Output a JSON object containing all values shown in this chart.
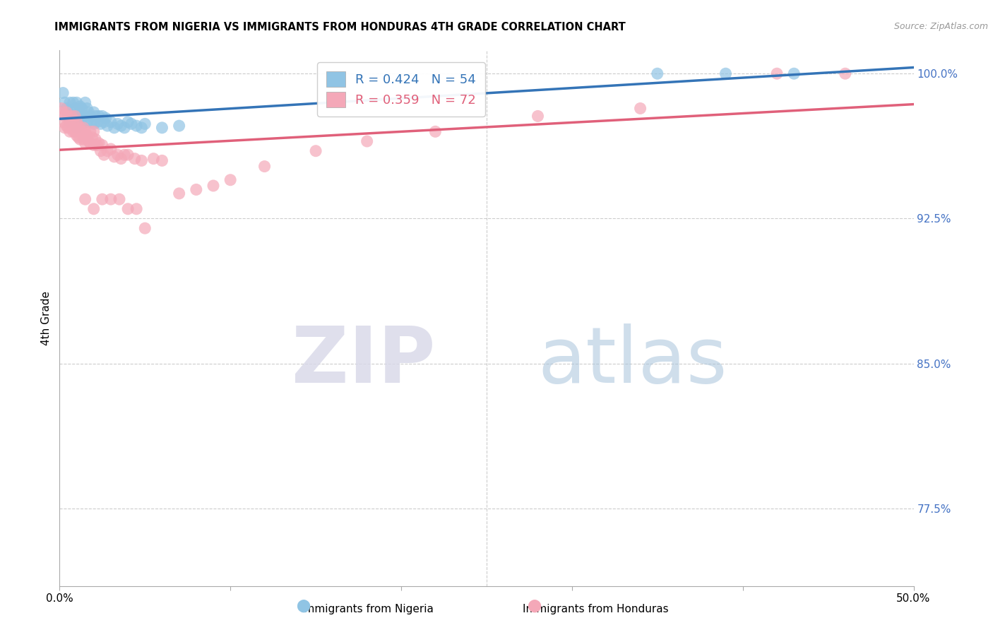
{
  "title": "IMMIGRANTS FROM NIGERIA VS IMMIGRANTS FROM HONDURAS 4TH GRADE CORRELATION CHART",
  "source": "Source: ZipAtlas.com",
  "ylabel": "4th Grade",
  "y_ticks_pct": [
    77.5,
    85.0,
    92.5,
    100.0
  ],
  "y_tick_labels": [
    "77.5%",
    "85.0%",
    "92.5%",
    "100.0%"
  ],
  "xmin": 0.0,
  "xmax": 0.5,
  "ymin": 0.735,
  "ymax": 1.012,
  "nigeria_color": "#90c4e4",
  "honduras_color": "#f4a8b8",
  "nigeria_line_color": "#3474b7",
  "honduras_line_color": "#e0607a",
  "legend_label_nigeria": "R = 0.424   N = 54",
  "legend_label_honduras": "R = 0.359   N = 72",
  "watermark_zip": "ZIP",
  "watermark_atlas": "atlas",
  "nigeria_x": [
    0.002,
    0.003,
    0.004,
    0.005,
    0.005,
    0.006,
    0.006,
    0.007,
    0.007,
    0.008,
    0.008,
    0.009,
    0.009,
    0.01,
    0.01,
    0.01,
    0.011,
    0.012,
    0.012,
    0.013,
    0.013,
    0.014,
    0.015,
    0.015,
    0.016,
    0.016,
    0.017,
    0.018,
    0.019,
    0.02,
    0.02,
    0.021,
    0.022,
    0.023,
    0.024,
    0.025,
    0.026,
    0.027,
    0.028,
    0.03,
    0.032,
    0.034,
    0.036,
    0.038,
    0.04,
    0.042,
    0.045,
    0.048,
    0.05,
    0.06,
    0.07,
    0.35,
    0.39,
    0.43
  ],
  "nigeria_y": [
    0.99,
    0.985,
    0.982,
    0.98,
    0.978,
    0.985,
    0.975,
    0.98,
    0.978,
    0.985,
    0.975,
    0.982,
    0.977,
    0.985,
    0.978,
    0.972,
    0.98,
    0.983,
    0.977,
    0.982,
    0.974,
    0.978,
    0.985,
    0.978,
    0.982,
    0.975,
    0.98,
    0.978,
    0.975,
    0.98,
    0.974,
    0.978,
    0.975,
    0.978,
    0.974,
    0.978,
    0.975,
    0.977,
    0.973,
    0.975,
    0.972,
    0.974,
    0.973,
    0.972,
    0.975,
    0.974,
    0.973,
    0.972,
    0.974,
    0.972,
    0.973,
    1.0,
    1.0,
    1.0
  ],
  "honduras_x": [
    0.001,
    0.002,
    0.002,
    0.003,
    0.003,
    0.004,
    0.004,
    0.005,
    0.005,
    0.006,
    0.006,
    0.007,
    0.007,
    0.008,
    0.008,
    0.009,
    0.009,
    0.01,
    0.01,
    0.011,
    0.011,
    0.012,
    0.012,
    0.013,
    0.014,
    0.014,
    0.015,
    0.015,
    0.016,
    0.017,
    0.018,
    0.018,
    0.019,
    0.02,
    0.02,
    0.021,
    0.022,
    0.023,
    0.024,
    0.025,
    0.026,
    0.028,
    0.03,
    0.032,
    0.034,
    0.036,
    0.038,
    0.04,
    0.044,
    0.048,
    0.055,
    0.06,
    0.07,
    0.08,
    0.09,
    0.1,
    0.12,
    0.15,
    0.18,
    0.22,
    0.28,
    0.34,
    0.42,
    0.46,
    0.015,
    0.02,
    0.025,
    0.03,
    0.035,
    0.04,
    0.045,
    0.05
  ],
  "honduras_y": [
    0.982,
    0.98,
    0.975,
    0.978,
    0.972,
    0.98,
    0.973,
    0.978,
    0.972,
    0.975,
    0.97,
    0.978,
    0.972,
    0.975,
    0.97,
    0.978,
    0.97,
    0.975,
    0.968,
    0.973,
    0.967,
    0.972,
    0.966,
    0.97,
    0.972,
    0.966,
    0.97,
    0.964,
    0.968,
    0.965,
    0.97,
    0.964,
    0.967,
    0.97,
    0.963,
    0.966,
    0.963,
    0.964,
    0.96,
    0.963,
    0.958,
    0.96,
    0.961,
    0.957,
    0.958,
    0.956,
    0.958,
    0.958,
    0.956,
    0.955,
    0.956,
    0.955,
    0.938,
    0.94,
    0.942,
    0.945,
    0.952,
    0.96,
    0.965,
    0.97,
    0.978,
    0.982,
    1.0,
    1.0,
    0.935,
    0.93,
    0.935,
    0.935,
    0.935,
    0.93,
    0.93,
    0.92
  ]
}
